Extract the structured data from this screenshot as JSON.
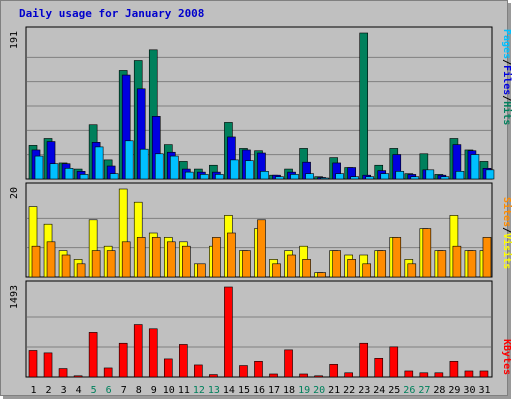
{
  "title": "Daily usage for January 2008",
  "colors": {
    "hits": "#00805c",
    "files": "#0000e0",
    "pages": "#00c0ff",
    "visits": "#ffff00",
    "sites": "#ff8c00",
    "kbytes": "#ff0000",
    "day_weekday": "#000000",
    "day_weekend": "#00805c"
  },
  "legend": {
    "hits_panel": [
      "Pages",
      "/",
      "Files",
      "/",
      "Hits"
    ],
    "visits_panel": [
      "Sites",
      "/",
      "Visits"
    ],
    "kbytes_panel": [
      "KBytes"
    ]
  },
  "chart_data": [
    {
      "type": "bar",
      "title": "Daily usage for January 2008",
      "panel": "hits",
      "ymax_label": "191",
      "ylim": [
        0,
        191
      ],
      "categories": [
        "1",
        "2",
        "3",
        "4",
        "5",
        "6",
        "7",
        "8",
        "9",
        "10",
        "11",
        "12",
        "13",
        "14",
        "15",
        "16",
        "17",
        "18",
        "19",
        "20",
        "21",
        "22",
        "23",
        "24",
        "25",
        "26",
        "27",
        "28",
        "29",
        "30",
        "31"
      ],
      "weekend_days": [
        "5",
        "6",
        "12",
        "13",
        "19",
        "20",
        "26",
        "27"
      ],
      "series": [
        {
          "name": "Hits",
          "values": [
            44,
            53,
            21,
            13,
            71,
            25,
            142,
            155,
            169,
            45,
            23,
            13,
            18,
            74,
            40,
            37,
            5,
            13,
            40,
            3,
            28,
            15,
            191,
            18,
            40,
            7,
            33,
            6,
            53,
            38,
            23
          ]
        },
        {
          "name": "Files",
          "values": [
            38,
            49,
            20,
            10,
            48,
            17,
            136,
            118,
            82,
            35,
            13,
            9,
            9,
            55,
            38,
            34,
            5,
            9,
            22,
            2,
            21,
            15,
            5,
            11,
            32,
            6,
            12,
            5,
            45,
            37,
            14
          ]
        },
        {
          "name": "Pages",
          "values": [
            30,
            20,
            14,
            6,
            42,
            7,
            50,
            39,
            33,
            30,
            9,
            6,
            6,
            25,
            24,
            10,
            3,
            6,
            7,
            1,
            7,
            3,
            3,
            7,
            10,
            3,
            12,
            3,
            10,
            32,
            12
          ]
        }
      ]
    },
    {
      "type": "bar",
      "panel": "visits",
      "ymax_label": "20",
      "ylim": [
        0,
        20
      ],
      "categories": [
        "1",
        "2",
        "3",
        "4",
        "5",
        "6",
        "7",
        "8",
        "9",
        "10",
        "11",
        "12",
        "13",
        "14",
        "15",
        "16",
        "17",
        "18",
        "19",
        "20",
        "21",
        "22",
        "23",
        "24",
        "25",
        "26",
        "27",
        "28",
        "29",
        "30",
        "31"
      ],
      "series": [
        {
          "name": "Visits",
          "values": [
            16,
            12,
            6,
            4,
            13,
            7,
            20,
            17,
            10,
            9,
            8,
            3,
            7,
            14,
            6,
            11,
            4,
            6,
            7,
            1,
            6,
            5,
            5,
            6,
            9,
            4,
            11,
            6,
            14,
            6,
            6
          ]
        },
        {
          "name": "Sites",
          "values": [
            7,
            8,
            5,
            3,
            6,
            6,
            8,
            9,
            9,
            8,
            7,
            3,
            9,
            10,
            6,
            13,
            3,
            5,
            4,
            1,
            6,
            4,
            3,
            6,
            9,
            3,
            11,
            6,
            7,
            6,
            9
          ]
        }
      ]
    },
    {
      "type": "bar",
      "panel": "kbytes",
      "ymax_label": "1493",
      "ylim": [
        0,
        1493
      ],
      "categories": [
        "1",
        "2",
        "3",
        "4",
        "5",
        "6",
        "7",
        "8",
        "9",
        "10",
        "11",
        "12",
        "13",
        "14",
        "15",
        "16",
        "17",
        "18",
        "19",
        "20",
        "21",
        "22",
        "23",
        "24",
        "25",
        "26",
        "27",
        "28",
        "29",
        "30",
        "31"
      ],
      "series": [
        {
          "name": "KBytes",
          "values": [
            440,
            400,
            140,
            20,
            740,
            150,
            560,
            870,
            800,
            300,
            540,
            200,
            40,
            1493,
            190,
            260,
            50,
            450,
            50,
            20,
            210,
            70,
            560,
            310,
            500,
            100,
            70,
            70,
            260,
            100,
            100
          ]
        }
      ]
    }
  ]
}
